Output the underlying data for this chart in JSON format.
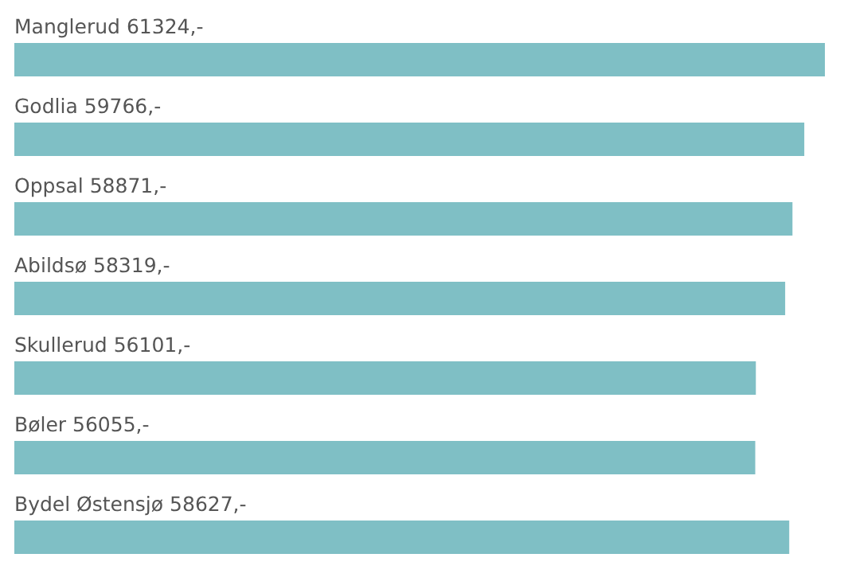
{
  "chart_data": {
    "type": "bar",
    "orientation": "horizontal",
    "categories": [
      "Manglerud",
      "Godlia",
      "Oppsal",
      "Abildsø",
      "Skullerud",
      "Bøler",
      "Bydel Østensjø"
    ],
    "values": [
      61324,
      59766,
      58871,
      58319,
      56101,
      56055,
      58627
    ],
    "value_labels": [
      "61324,-",
      "59766,-",
      "58871,-",
      "58319,-",
      "56101,-",
      "56055,-",
      "58627,-"
    ],
    "color": "#7fbfc5"
  }
}
